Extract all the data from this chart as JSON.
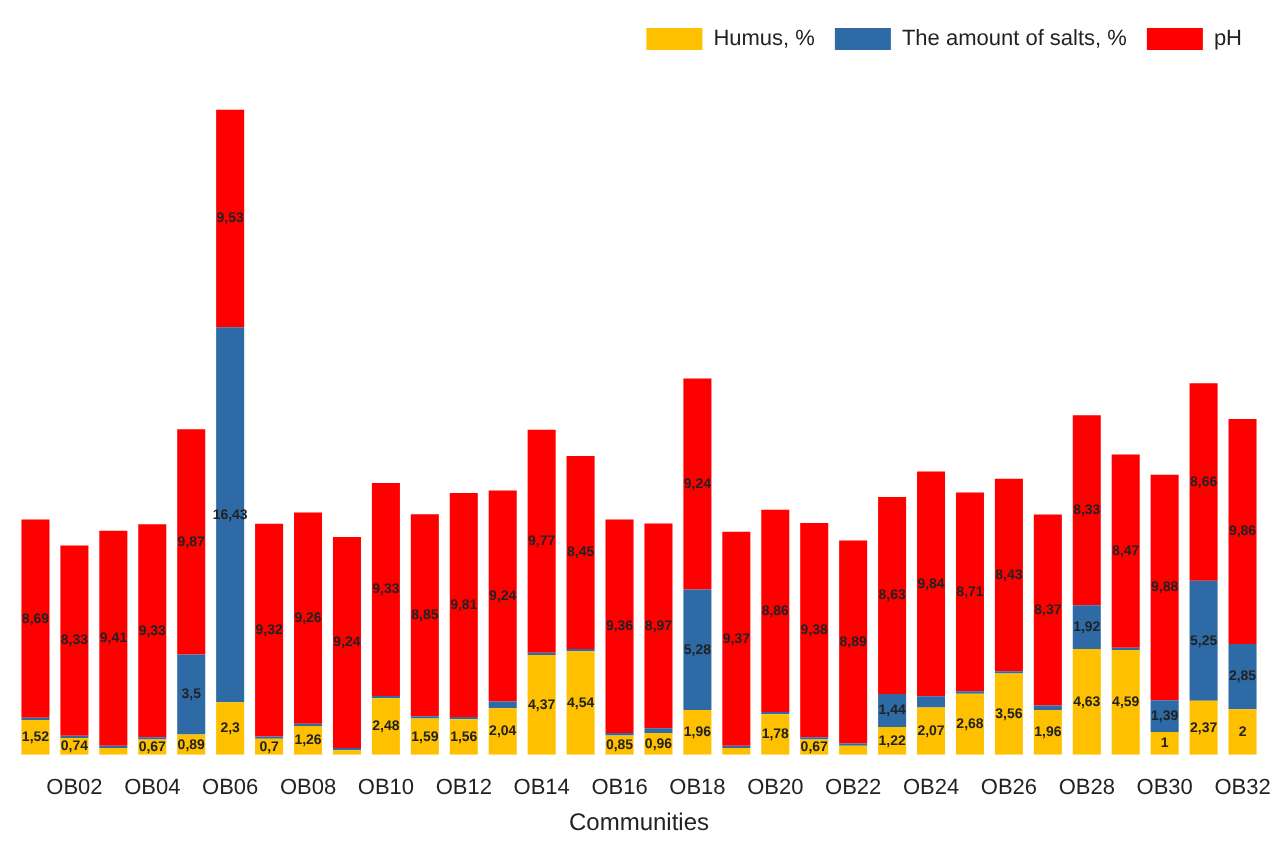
{
  "chart_data": {
    "type": "bar",
    "stacked": true,
    "xlabel": "Communities",
    "legend": "top right",
    "categories": [
      null,
      "OB02",
      null,
      "OB04",
      null,
      "OB06",
      null,
      "OB08",
      null,
      "OB10",
      null,
      "OB12",
      null,
      "OB14",
      null,
      "OB16",
      null,
      "OB18",
      null,
      "OB20",
      null,
      "OB22",
      null,
      "OB24",
      null,
      "OB26",
      null,
      "OB28",
      null,
      "OB30",
      null,
      "OB32"
    ],
    "series": [
      {
        "name": "Humus, %",
        "color": "#ffc000",
        "values": [
          1.52,
          0.74,
          0.3,
          0.67,
          0.89,
          2.3,
          0.7,
          1.26,
          0.2,
          2.48,
          1.59,
          1.56,
          2.04,
          4.37,
          4.54,
          0.85,
          0.96,
          1.96,
          0.3,
          1.78,
          0.67,
          0.4,
          1.22,
          2.07,
          2.68,
          3.56,
          1.96,
          4.63,
          4.59,
          1,
          2.37,
          2
        ],
        "value_labels": [
          "1,52",
          "0,74",
          null,
          "0,67",
          "0,89",
          "2,3",
          "0,7",
          "1,26",
          null,
          "2,48",
          "1,59",
          "1,56",
          "2,04",
          "4,37",
          "4,54",
          "0,85",
          "0,96",
          "1,96",
          null,
          "1,78",
          "0,67",
          null,
          "1,22",
          "2,07",
          "2,68",
          "3,56",
          "1,96",
          "4,63",
          "4,59",
          "1",
          "2,37",
          "2"
        ]
      },
      {
        "name": "The amount of salts, %",
        "color": "#2e6aa6",
        "values": [
          0.1,
          0.1,
          0.1,
          0.1,
          3.5,
          16.43,
          0.1,
          0.1,
          0.1,
          0.1,
          0.1,
          0.1,
          0.3,
          0.1,
          0.1,
          0.1,
          0.2,
          5.28,
          0.1,
          0.1,
          0.1,
          0.1,
          1.44,
          0.5,
          0.1,
          0.1,
          0.2,
          1.92,
          0.1,
          1.39,
          5.25,
          2.85
        ],
        "value_labels": [
          null,
          null,
          null,
          null,
          "3,5",
          "16,43",
          null,
          null,
          null,
          null,
          null,
          null,
          null,
          null,
          null,
          null,
          null,
          "5,28",
          null,
          null,
          null,
          null,
          "1,44",
          null,
          null,
          null,
          null,
          "1,92",
          null,
          "1,39",
          "5,25",
          "2,85"
        ]
      },
      {
        "name": "pH",
        "color": "#ff0000",
        "values": [
          8.69,
          8.33,
          9.41,
          9.33,
          9.87,
          9.53,
          9.32,
          9.26,
          9.24,
          9.33,
          8.85,
          9.81,
          9.24,
          9.77,
          8.45,
          9.36,
          8.97,
          9.24,
          9.37,
          8.86,
          9.38,
          8.89,
          8.63,
          9.84,
          8.71,
          8.43,
          8.37,
          8.33,
          8.47,
          9.88,
          8.66,
          9.86
        ],
        "value_labels": [
          "8,69",
          "8,33",
          "9,41",
          "9,33",
          "9,87",
          "9,53",
          "9,32",
          "9,26",
          "9,24",
          "9,33",
          "8,85",
          "9,81",
          "9,24",
          "9,77",
          "8,45",
          "9,36",
          "8,97",
          "9,24",
          "9,37",
          "8,86",
          "9,38",
          "8,89",
          "8,63",
          "9,84",
          "8,71",
          "8,43",
          "8,37",
          "8,33",
          "8,47",
          "9,88",
          "8,66",
          "9,86"
        ]
      }
    ]
  }
}
